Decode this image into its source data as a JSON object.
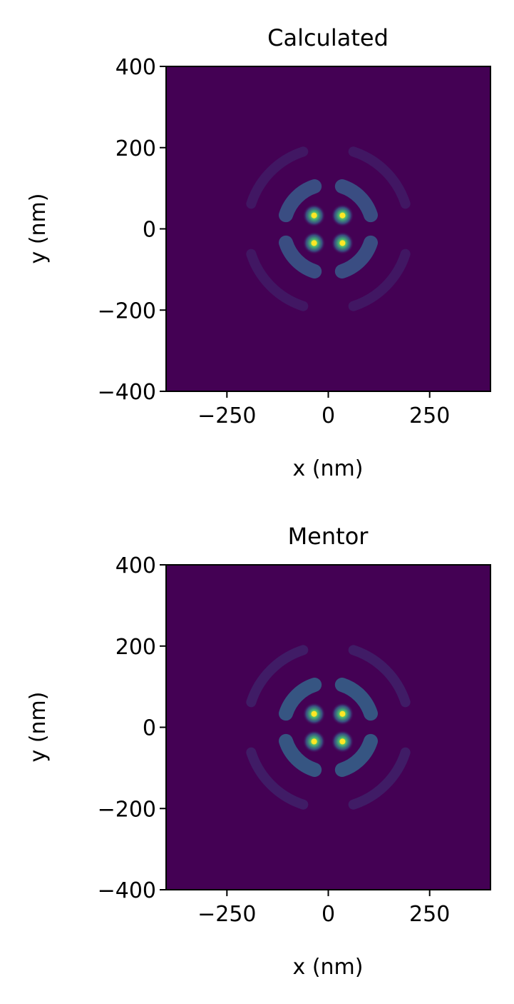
{
  "chart_data": [
    {
      "type": "heatmap",
      "title": "Calculated",
      "xlabel": "x (nm)",
      "ylabel": "y (nm)",
      "xlim": [
        -400,
        400
      ],
      "ylim": [
        -400,
        400
      ],
      "xticks": [
        -250,
        0,
        250
      ],
      "xtick_labels": [
        "−250",
        "0",
        "250"
      ],
      "yticks": [
        400,
        200,
        0,
        -200,
        -400
      ],
      "ytick_labels": [
        "400",
        "200",
        "0",
        "−200",
        "−400"
      ],
      "colormap": "viridis",
      "background_color": "#440154",
      "grid": false,
      "lobes": [
        {
          "x": -35,
          "y": 33,
          "intensity": 1.0
        },
        {
          "x": 35,
          "y": 33,
          "intensity": 1.0
        },
        {
          "x": -35,
          "y": -35,
          "intensity": 1.0
        },
        {
          "x": 35,
          "y": -35,
          "intensity": 1.0
        }
      ],
      "rings": [
        {
          "radius": 110,
          "intensity": 0.28
        },
        {
          "radius": 200,
          "intensity": 0.08
        }
      ]
    },
    {
      "type": "heatmap",
      "title": "Mentor",
      "xlabel": "x (nm)",
      "ylabel": "y (nm)",
      "xlim": [
        -400,
        400
      ],
      "ylim": [
        -400,
        400
      ],
      "xticks": [
        -250,
        0,
        250
      ],
      "xtick_labels": [
        "−250",
        "0",
        "250"
      ],
      "yticks": [
        400,
        200,
        0,
        -200,
        -400
      ],
      "ytick_labels": [
        "400",
        "200",
        "0",
        "−200",
        "−400"
      ],
      "colormap": "viridis",
      "background_color": "#440154",
      "grid": false,
      "lobes": [
        {
          "x": -35,
          "y": 33,
          "intensity": 1.0
        },
        {
          "x": 35,
          "y": 33,
          "intensity": 1.0
        },
        {
          "x": -35,
          "y": -35,
          "intensity": 1.0
        },
        {
          "x": 35,
          "y": -35,
          "intensity": 1.0
        }
      ],
      "rings": [
        {
          "radius": 110,
          "intensity": 0.32
        },
        {
          "radius": 200,
          "intensity": 0.1
        }
      ]
    }
  ]
}
